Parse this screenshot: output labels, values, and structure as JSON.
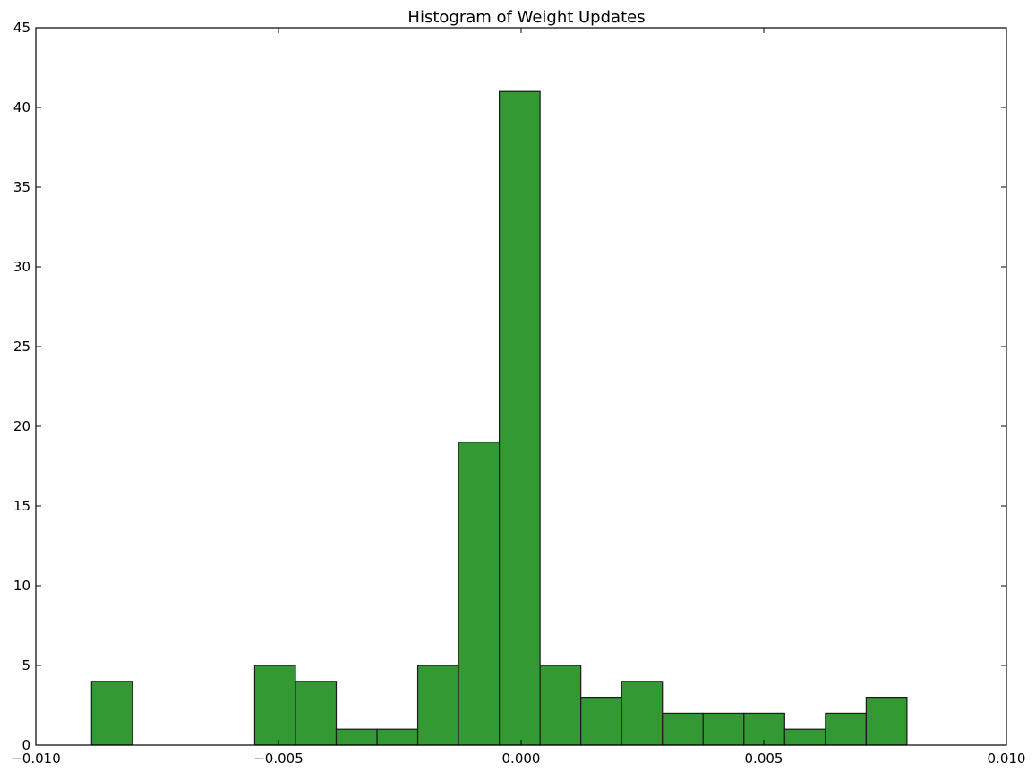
{
  "chart_data": {
    "type": "bar",
    "title": "Histogram of Weight Updates",
    "xlabel": "",
    "ylabel": "",
    "xlim": [
      -0.01,
      0.01
    ],
    "ylim": [
      0,
      45
    ],
    "grid": false,
    "bar_color": "#339933",
    "edge_color": "#1a1a1a",
    "bin_edges": [
      -0.00885,
      -0.00801,
      -0.00717,
      -0.00633,
      -0.00549,
      -0.00465,
      -0.00381,
      -0.00297,
      -0.00213,
      -0.00129,
      -0.00045,
      0.00039,
      0.00123,
      0.00207,
      0.00291,
      0.00375,
      0.00459,
      0.00543,
      0.00627,
      0.00711,
      0.00795
    ],
    "values": [
      4,
      0,
      0,
      0,
      5,
      4,
      1,
      1,
      5,
      19,
      41,
      5,
      3,
      4,
      2,
      2,
      2,
      1,
      2,
      3
    ],
    "x_ticks": [
      -0.01,
      -0.005,
      0.0,
      0.005,
      0.01
    ],
    "x_tick_labels": [
      "−0.010",
      "−0.005",
      "0.000",
      "0.005",
      "0.010"
    ],
    "y_ticks": [
      0,
      5,
      10,
      15,
      20,
      25,
      30,
      35,
      40,
      45
    ],
    "y_tick_labels": [
      "0",
      "5",
      "10",
      "15",
      "20",
      "25",
      "30",
      "35",
      "40",
      "45"
    ]
  }
}
